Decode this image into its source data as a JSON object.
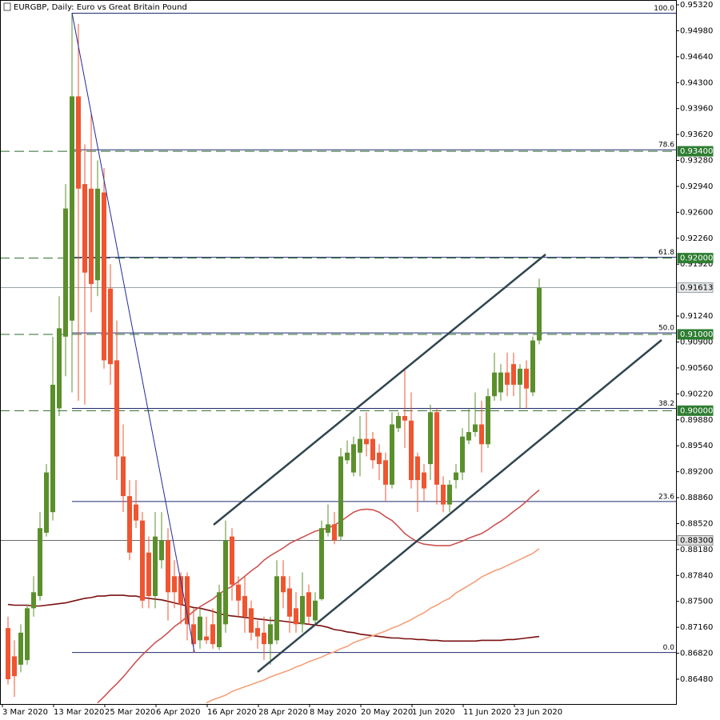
{
  "chart_data": {
    "type": "candlestick",
    "title": "EURGBP, Daily:  Euro vs Great Britain Pound",
    "categories": [
      "3 Mar 2020",
      null,
      null,
      null,
      null,
      null,
      null,
      null,
      "13 Mar 2020",
      null,
      null,
      null,
      null,
      null,
      null,
      null,
      "25 Mar 2020",
      null,
      null,
      null,
      null,
      null,
      null,
      null,
      "6 Apr 2020",
      null,
      null,
      null,
      null,
      null,
      null,
      null,
      "16 Apr 2020",
      null,
      null,
      null,
      null,
      null,
      null,
      null,
      "28 Apr 2020",
      null,
      null,
      null,
      null,
      null,
      null,
      null,
      "8 May 2020",
      null,
      null,
      null,
      null,
      null,
      null,
      null,
      "20 May 2020",
      null,
      null,
      null,
      null,
      null,
      null,
      null,
      "1 Jun 2020",
      null,
      null,
      null,
      null,
      null,
      null,
      null,
      "11 Jun 2020",
      null,
      null,
      null,
      null,
      null,
      null,
      null,
      "23 Jun 2020",
      null,
      null,
      null
    ],
    "open": [
      0.8715,
      0.8678,
      0.8667,
      0.8673,
      0.8741,
      0.8757,
      0.884,
      0.8867,
      0.9003,
      0.9097,
      0.9118,
      0.9412,
      0.9297,
      0.9291,
      0.9171,
      0.9286,
      0.916,
      0.9066,
      0.894,
      0.8888,
      0.8877,
      0.8856,
      0.8814,
      0.8757,
      0.8804,
      0.883,
      0.8783,
      0.8783,
      0.8783,
      0.872,
      0.8699,
      0.8704,
      0.872,
      0.869,
      0.872,
      0.8835,
      0.8772,
      0.8757,
      0.8741,
      0.8715,
      0.8709,
      0.8694,
      0.8699,
      0.8783,
      0.8767,
      0.8741,
      0.872,
      0.8762,
      0.8725,
      0.8753,
      0.884,
      0.8851,
      0.8835,
      0.8935,
      0.8919,
      0.8945,
      0.8963,
      0.8963,
      0.8945,
      0.8935,
      0.8903,
      0.8977,
      0.8993,
      0.8987,
      0.894,
      0.8919,
      0.893,
      0.8998,
      0.8903,
      0.8877,
      0.8909,
      0.8919,
      0.8961,
      0.8972,
      0.8982,
      0.8956,
      0.9019,
      0.9024,
      0.905,
      0.9061,
      0.9034,
      0.9055,
      0.9024,
      0.9092
    ],
    "high": [
      0.873,
      0.8699,
      0.872,
      0.8746,
      0.8783,
      0.8867,
      0.893,
      0.9097,
      0.915,
      0.9297,
      0.9521,
      0.9507,
      0.9349,
      0.9391,
      0.9328,
      0.9318,
      0.9192,
      0.9118,
      0.8982,
      0.8909,
      0.8909,
      0.8867,
      0.8835,
      0.8867,
      0.8867,
      0.8846,
      0.8804,
      0.8788,
      0.8788,
      0.8741,
      0.8741,
      0.873,
      0.8741,
      0.8772,
      0.8856,
      0.8846,
      0.8783,
      0.8783,
      0.8751,
      0.8725,
      0.873,
      0.873,
      0.8804,
      0.8804,
      0.8783,
      0.8762,
      0.8788,
      0.8772,
      0.8762,
      0.8856,
      0.8877,
      0.8867,
      0.8951,
      0.8961,
      0.8966,
      0.8993,
      0.8998,
      0.8972,
      0.8956,
      0.8945,
      0.8998,
      0.8998,
      0.9055,
      0.9024,
      0.8945,
      0.893,
      0.9008,
      0.9003,
      0.8914,
      0.8909,
      0.893,
      0.8977,
      0.9003,
      0.9024,
      0.9013,
      0.9029,
      0.9076,
      0.9061,
      0.9076,
      0.9076,
      0.9061,
      0.9066,
      0.9097,
      0.9173
    ],
    "low": [
      0.8641,
      0.8625,
      0.8657,
      0.8667,
      0.873,
      0.8751,
      0.8835,
      0.8856,
      0.8993,
      0.9045,
      0.9024,
      0.9013,
      0.9008,
      0.9129,
      0.915,
      0.9055,
      0.9034,
      0.8909,
      0.8867,
      0.8804,
      0.8846,
      0.8741,
      0.8741,
      0.8741,
      0.8793,
      0.8725,
      0.8741,
      0.872,
      0.8699,
      0.8683,
      0.8688,
      0.8694,
      0.8688,
      0.8686,
      0.8709,
      0.8751,
      0.873,
      0.8709,
      0.8699,
      0.8688,
      0.8673,
      0.8667,
      0.8694,
      0.8741,
      0.8709,
      0.8709,
      0.8709,
      0.872,
      0.872,
      0.8751,
      0.8835,
      0.8825,
      0.883,
      0.893,
      0.8914,
      0.8914,
      0.894,
      0.8924,
      0.8909,
      0.8882,
      0.8898,
      0.8972,
      0.8951,
      0.8898,
      0.8867,
      0.8882,
      0.8909,
      0.8877,
      0.8867,
      0.8867,
      0.8898,
      0.8909,
      0.8956,
      0.8966,
      0.8919,
      0.8951,
      0.9013,
      0.9013,
      0.9019,
      0.9019,
      0.9003,
      0.9003,
      0.9019,
      0.9087
    ],
    "close": [
      0.8648,
      0.8652,
      0.8709,
      0.8741,
      0.8762,
      0.8846,
      0.8919,
      0.9034,
      0.9108,
      0.9265,
      0.9412,
      0.9291,
      0.9181,
      0.9166,
      0.9291,
      0.9066,
      0.9061,
      0.894,
      0.8888,
      0.8814,
      0.8856,
      0.8751,
      0.8757,
      0.8835,
      0.883,
      0.8762,
      0.8762,
      0.8746,
      0.872,
      0.8694,
      0.873,
      0.8699,
      0.8694,
      0.8762,
      0.883,
      0.8772,
      0.8751,
      0.873,
      0.8709,
      0.8704,
      0.8694,
      0.872,
      0.8783,
      0.8762,
      0.873,
      0.872,
      0.8757,
      0.873,
      0.8751,
      0.8846,
      0.8851,
      0.883,
      0.894,
      0.8945,
      0.8956,
      0.8963,
      0.8956,
      0.8935,
      0.893,
      0.8903,
      0.8982,
      0.8993,
      0.8987,
      0.8909,
      0.8909,
      0.8898,
      0.8998,
      0.8903,
      0.8877,
      0.8903,
      0.8919,
      0.8966,
      0.8972,
      0.8982,
      0.8956,
      0.9019,
      0.905,
      0.905,
      0.9034,
      0.9034,
      0.9055,
      0.9029,
      0.9092,
      0.9161
    ],
    "up_color": "#5b8f2c",
    "down_color": "#ef5530",
    "series": [
      {
        "color": "#7a1010",
        "values": [
          0.8746,
          0.8745,
          0.8745,
          0.8745,
          0.8744,
          0.8744,
          0.8745,
          0.8746,
          0.8747,
          0.8748,
          0.875,
          0.8752,
          0.8754,
          0.8755,
          0.8757,
          0.8757,
          0.8758,
          0.8758,
          0.8758,
          0.8757,
          0.8757,
          0.8755,
          0.8754,
          0.8753,
          0.8752,
          0.875,
          0.8748,
          0.8746,
          0.8744,
          0.8742,
          0.8741,
          0.8739,
          0.8737,
          0.8734,
          0.8732,
          0.8731,
          0.873,
          0.8729,
          0.8728,
          0.8727,
          0.8726,
          0.8725,
          0.8725,
          0.8724,
          0.8723,
          0.8722,
          0.8721,
          0.872,
          0.8719,
          0.8718,
          0.8716,
          0.8713,
          0.8712,
          0.871,
          0.8709,
          0.8707,
          0.8706,
          0.8705,
          0.8704,
          0.8703,
          0.8702,
          0.8702,
          0.8701,
          0.8701,
          0.87,
          0.87,
          0.8699,
          0.8699,
          0.8698,
          0.8698,
          0.8698,
          0.8698,
          0.8698,
          0.8698,
          0.8699,
          0.8699,
          0.8699,
          0.8699,
          0.87,
          0.87,
          0.8701,
          0.8702,
          0.8703,
          0.8704
        ]
      },
      {
        "color": "#cd5252",
        "values": [
          null,
          null,
          null,
          null,
          null,
          null,
          null,
          null,
          null,
          null,
          null,
          null,
          null,
          null,
          0.8617,
          0.8625,
          0.8634,
          0.8642,
          0.8651,
          0.8661,
          0.8671,
          0.868,
          0.8688,
          0.8696,
          0.8702,
          0.8709,
          0.8717,
          0.8723,
          0.873,
          0.8737,
          0.8743,
          0.8748,
          0.8753,
          0.876,
          0.8765,
          0.877,
          0.8776,
          0.8783,
          0.879,
          0.8796,
          0.8804,
          0.881,
          0.8815,
          0.882,
          0.8826,
          0.883,
          0.8834,
          0.8838,
          0.8842,
          0.8844,
          0.8846,
          0.885,
          0.8855,
          0.8861,
          0.8867,
          0.887,
          0.8871,
          0.887,
          0.8867,
          0.8861,
          0.8856,
          0.8848,
          0.8839,
          0.8833,
          0.8828,
          0.8825,
          0.8824,
          0.8823,
          0.8823,
          0.8823,
          0.8826,
          0.8829,
          0.8833,
          0.8836,
          0.8839,
          0.8844,
          0.885,
          0.8855,
          0.8861,
          0.8868,
          0.8874,
          0.8881,
          0.8889,
          0.8896
        ]
      },
      {
        "color": "#f4a07a",
        "values": [
          null,
          null,
          null,
          null,
          null,
          null,
          null,
          null,
          null,
          null,
          null,
          null,
          null,
          null,
          null,
          null,
          null,
          null,
          null,
          null,
          null,
          null,
          null,
          null,
          null,
          null,
          null,
          null,
          null,
          null,
          null,
          0.8617,
          0.8621,
          0.8624,
          0.8627,
          0.8632,
          0.8635,
          0.8638,
          0.8641,
          0.8644,
          0.8647,
          0.8651,
          0.8654,
          0.8657,
          0.866,
          0.8664,
          0.8667,
          0.8671,
          0.8674,
          0.8677,
          0.8681,
          0.8684,
          0.8688,
          0.8691,
          0.8696,
          0.8699,
          0.8702,
          0.8705,
          0.8708,
          0.8711,
          0.8715,
          0.8718,
          0.8722,
          0.8726,
          0.8731,
          0.8735,
          0.8741,
          0.8745,
          0.875,
          0.8754,
          0.8761,
          0.8766,
          0.8771,
          0.8776,
          0.8782,
          0.8786,
          0.879,
          0.8793,
          0.8797,
          0.8801,
          0.8805,
          0.8809,
          0.8813,
          0.8819
        ]
      }
    ],
    "ylim": [
      0.86155,
      0.95383
    ],
    "yticks": [
      {
        "value": 0.9532,
        "label": "0.95320"
      },
      {
        "value": 0.9498,
        "label": "0.94980"
      },
      {
        "value": 0.9464,
        "label": "0.94640"
      },
      {
        "value": 0.943,
        "label": "0.94300"
      },
      {
        "value": 0.9396,
        "label": "0.93960"
      },
      {
        "value": 0.9362,
        "label": "0.93620"
      },
      {
        "value": 0.9328,
        "label": "0.93280"
      },
      {
        "value": 0.9294,
        "label": "0.92940"
      },
      {
        "value": 0.926,
        "label": "0.92600"
      },
      {
        "value": 0.9226,
        "label": "0.92260"
      },
      {
        "value": 0.9192,
        "label": "0.91920"
      },
      {
        "value": 0.9124,
        "label": "0.91240"
      },
      {
        "value": 0.909,
        "label": "0.90900"
      },
      {
        "value": 0.9056,
        "label": "0.90560"
      },
      {
        "value": 0.9022,
        "label": "0.90220"
      },
      {
        "value": 0.8988,
        "label": "0.89880"
      },
      {
        "value": 0.8954,
        "label": "0.89540"
      },
      {
        "value": 0.892,
        "label": "0.89200"
      },
      {
        "value": 0.8886,
        "label": "0.88860"
      },
      {
        "value": 0.8852,
        "label": "0.88520"
      },
      {
        "value": 0.8818,
        "label": "0.88180"
      },
      {
        "value": 0.8784,
        "label": "0.87840"
      },
      {
        "value": 0.875,
        "label": "0.87500"
      },
      {
        "value": 0.8716,
        "label": "0.87160"
      },
      {
        "value": 0.8682,
        "label": "0.86820"
      },
      {
        "value": 0.8648,
        "label": "0.86480"
      }
    ],
    "fibonacci": {
      "color": "#1f2b6e",
      "levels": [
        {
          "label": "100.0",
          "value": 0.9521
        },
        {
          "label": "78.6",
          "value": 0.9342
        },
        {
          "label": "61.8",
          "value": 0.9201
        },
        {
          "label": "50.0",
          "value": 0.9102
        },
        {
          "label": "38.2",
          "value": 0.9003
        },
        {
          "label": "23.6",
          "value": 0.8881
        },
        {
          "label": "0.0",
          "value": 0.8683
        }
      ]
    },
    "price_lines": [
      {
        "value": 0.934,
        "label": "0.93400",
        "color": "#2b6b2b",
        "style": "dashed"
      },
      {
        "value": 0.92,
        "label": "0.92000",
        "color": "#2b6b2b",
        "style": "dashed"
      },
      {
        "value": 0.91,
        "label": "0.91000",
        "color": "#2b6b2b",
        "style": "dashed"
      },
      {
        "value": 0.9,
        "label": "0.90000",
        "color": "#2b6b2b",
        "style": "dashed"
      },
      {
        "value": 0.883,
        "label": "0.88300",
        "color": "#6b6b6b",
        "style": "solid"
      }
    ],
    "current_price": {
      "value": 0.91613,
      "label": "0.91613",
      "color": "#9aa3a8"
    }
  }
}
